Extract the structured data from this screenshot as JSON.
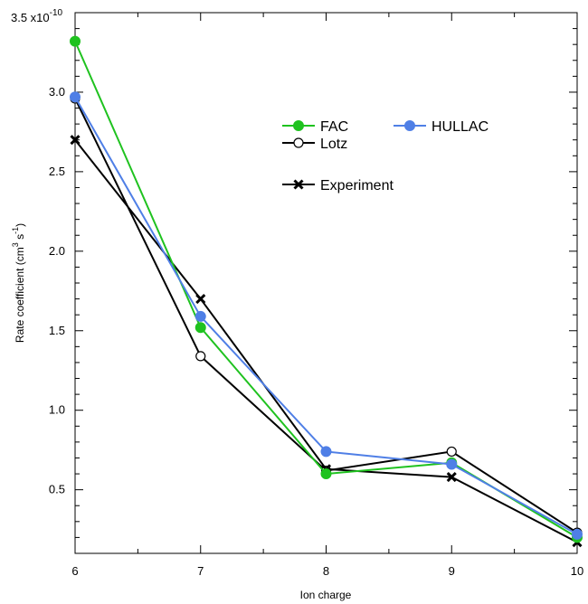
{
  "chart_data": {
    "type": "line",
    "xlabel": "Ion charge",
    "ylabel_parts": {
      "base": "Rate coefficient (cm",
      "sup1": "3",
      "mid": " s",
      "sup2": "-1",
      "end": ")"
    },
    "y_multiplier": {
      "base": "3.5 x10",
      "exponent": "-10"
    },
    "xlim": [
      6,
      10
    ],
    "ylim": [
      0.1,
      3.5
    ],
    "x_ticks": [
      6,
      7,
      8,
      9,
      10
    ],
    "y_tick_labels": [
      "0.5",
      "1.0",
      "1.5",
      "2.0",
      "2.5",
      "3.0"
    ],
    "grid": false,
    "legend_placement": "upper-right",
    "series": [
      {
        "name": "FAC",
        "color": "#1fc21f",
        "marker": "filled-circle",
        "x": [
          6,
          7,
          8,
          9,
          10
        ],
        "y": [
          3.32,
          1.52,
          0.6,
          0.67,
          0.2
        ]
      },
      {
        "name": "HULLAC",
        "color": "#4f7fe6",
        "marker": "filled-circle",
        "x": [
          6,
          7,
          8,
          9,
          10
        ],
        "y": [
          2.97,
          1.59,
          0.74,
          0.66,
          0.22
        ]
      },
      {
        "name": "Lotz",
        "color": "#000000",
        "marker": "open-circle",
        "x": [
          6,
          7,
          8,
          9,
          10
        ],
        "y": [
          2.96,
          1.34,
          0.62,
          0.74,
          0.23
        ]
      },
      {
        "name": "Experiment",
        "color": "#000000",
        "marker": "x-cross",
        "x": [
          6,
          7,
          8,
          9,
          10
        ],
        "y": [
          2.7,
          1.7,
          0.63,
          0.58,
          0.17
        ]
      }
    ]
  }
}
